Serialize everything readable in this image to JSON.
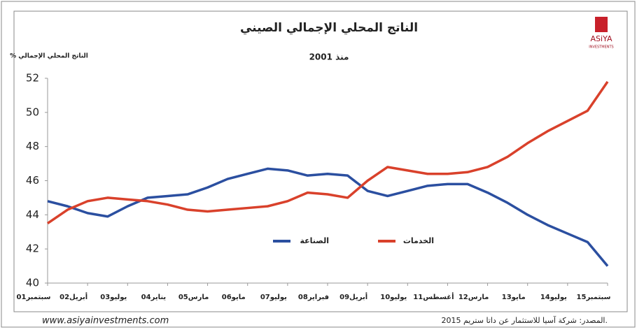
{
  "chart_data": {
    "type": "line",
    "title": "الناتج المحلي الإجمالي الصيني",
    "subtitle": "منذ 2001",
    "y_label": "% الناتج المحلي الإجمالي",
    "categories": [
      "سبتمبر01",
      null,
      "أبريل02",
      null,
      "يوليو03",
      null,
      "يناير04",
      null,
      "مارس05",
      null,
      "مايو06",
      null,
      "يوليو07",
      null,
      "فبراير08",
      null,
      "أبريل09",
      null,
      "يوليو10",
      null,
      "أغسطس11",
      null,
      "مارس12",
      null,
      "مايو13",
      null,
      "يوليو14",
      null,
      "سبتمبر15"
    ],
    "series": [
      {
        "name": "الصناعة",
        "color": "#2b4fa0",
        "values": [
          44.8,
          44.5,
          44.1,
          43.9,
          44.5,
          45.0,
          45.1,
          45.2,
          45.6,
          46.1,
          46.4,
          46.7,
          46.6,
          46.3,
          46.4,
          46.3,
          45.4,
          45.1,
          45.4,
          45.7,
          45.8,
          45.8,
          45.3,
          44.7,
          44.0,
          43.4,
          42.9,
          42.4,
          41.0
        ]
      },
      {
        "name": "الخدمات",
        "color": "#d9412b",
        "values": [
          43.5,
          44.3,
          44.8,
          45.0,
          44.9,
          44.8,
          44.6,
          44.3,
          44.2,
          44.3,
          44.4,
          44.5,
          44.8,
          45.3,
          45.2,
          45.0,
          46.0,
          46.8,
          46.6,
          46.4,
          46.4,
          46.5,
          46.8,
          47.4,
          48.2,
          48.9,
          49.5,
          50.1,
          51.8
        ]
      }
    ],
    "ylim": [
      40,
      52
    ],
    "yticks": [
      40,
      42,
      44,
      46,
      48,
      50,
      52
    ],
    "source": "المصدر: شركة آسيا للاستثمار عن داتا ستريم 2015.",
    "website": "www.asiyainvestments.com",
    "logo": {
      "name": "ASiYA",
      "subtitle": "INVESTMENTS"
    }
  }
}
